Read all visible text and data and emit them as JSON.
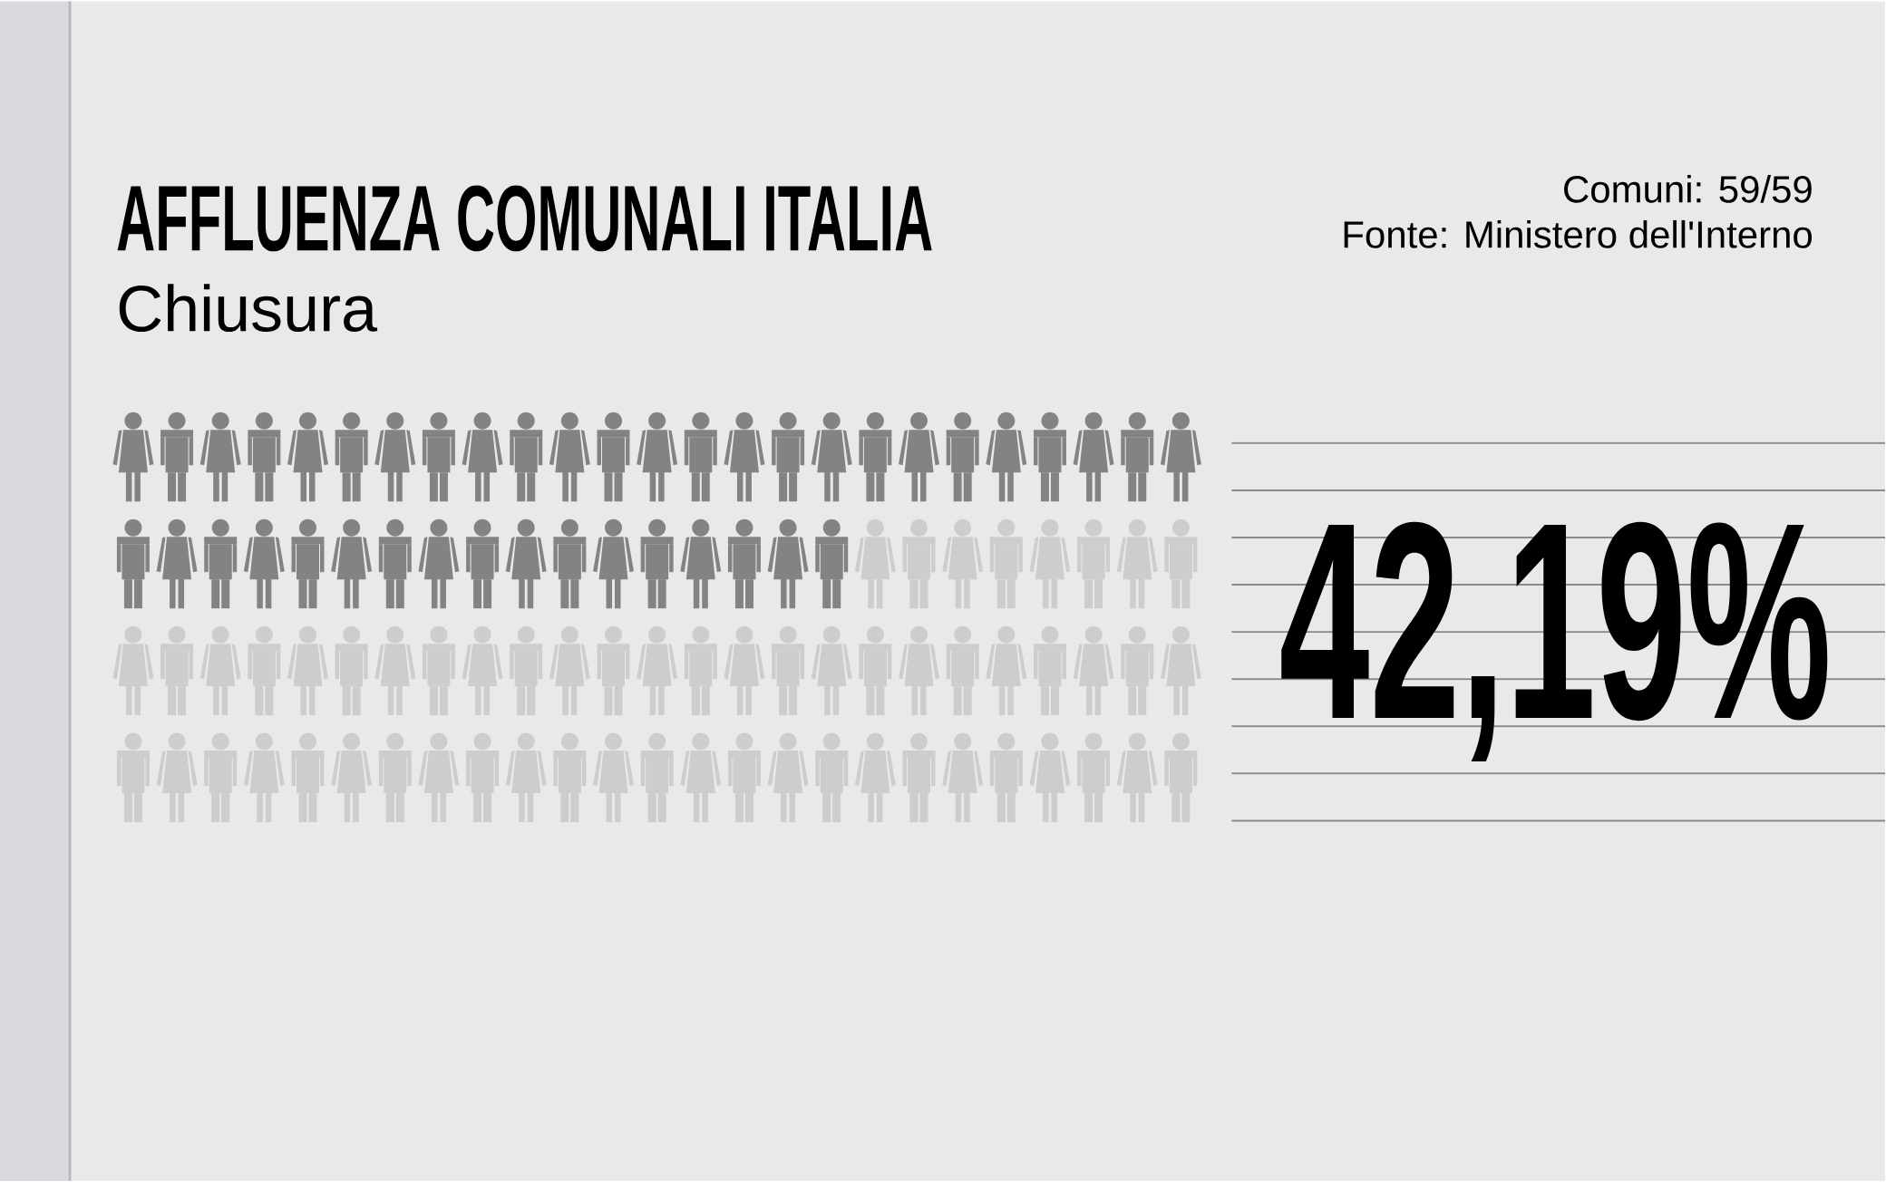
{
  "chart_data": {
    "type": "other",
    "title": "AFFLUENZA COMUNALI ITALIA",
    "subtitle": "Chiusura",
    "annotations": [
      "Comuni: 59/59",
      "Fonte: Ministero dell'Interno"
    ],
    "values": [
      42.19
    ],
    "value_labels": [
      "42,19%"
    ],
    "color": "#838383"
  }
}
